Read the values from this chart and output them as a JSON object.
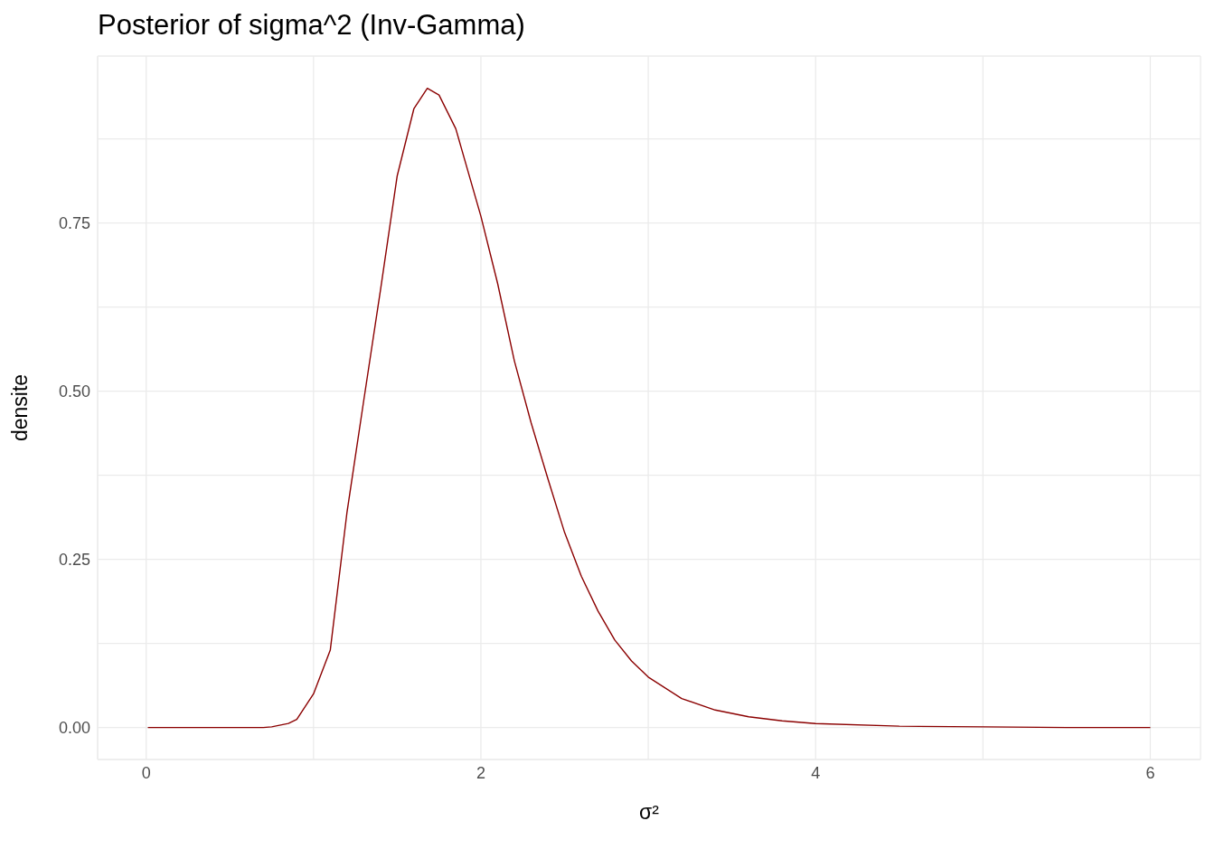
{
  "chart_data": {
    "type": "line",
    "title": "Posterior of sigma^2 (Inv-Gamma)",
    "xlabel": "σ²",
    "ylabel": "densite",
    "x": [
      0.01,
      0.3,
      0.6,
      0.7,
      0.75,
      0.85,
      0.9,
      1.0,
      1.1,
      1.2,
      1.3,
      1.4,
      1.5,
      1.6,
      1.68,
      1.75,
      1.85,
      2.0,
      2.1,
      2.2,
      2.3,
      2.4,
      2.5,
      2.6,
      2.7,
      2.8,
      2.9,
      3.0,
      3.2,
      3.4,
      3.6,
      3.8,
      4.0,
      4.5,
      5.0,
      5.5,
      6.0
    ],
    "series": [
      {
        "color": "#8b0000",
        "values": [
          0,
          0,
          0,
          0,
          0.001,
          0.006,
          0.012,
          0.05,
          0.115,
          0.32,
          0.486,
          0.65,
          0.82,
          0.92,
          0.95,
          0.94,
          0.89,
          0.76,
          0.66,
          0.545,
          0.453,
          0.37,
          0.29,
          0.225,
          0.173,
          0.13,
          0.099,
          0.075,
          0.043,
          0.026,
          0.016,
          0.01,
          0.006,
          0.002,
          0.001,
          0,
          0
        ]
      }
    ],
    "xlim": [
      -0.29,
      6.3
    ],
    "ylim": [
      -0.0475,
      0.998
    ],
    "xticks": [
      0,
      {
        "value": 1,
        "label": null
      },
      2,
      {
        "value": 3,
        "label": null
      },
      4,
      {
        "value": 5,
        "label": null
      },
      6
    ],
    "yticks": [
      "0.00",
      {
        "value": 0.125,
        "label": null
      },
      {
        "value": 0.25,
        "label": "0.25"
      },
      {
        "value": 0.375,
        "label": null
      },
      {
        "value": 0.5,
        "label": "0.50"
      },
      {
        "value": 0.625,
        "label": null
      },
      {
        "value": 0.75,
        "label": "0.75"
      },
      {
        "value": 0.875,
        "label": null
      }
    ],
    "grid": true,
    "legend": false,
    "marker": "none",
    "line_style": "solid"
  }
}
